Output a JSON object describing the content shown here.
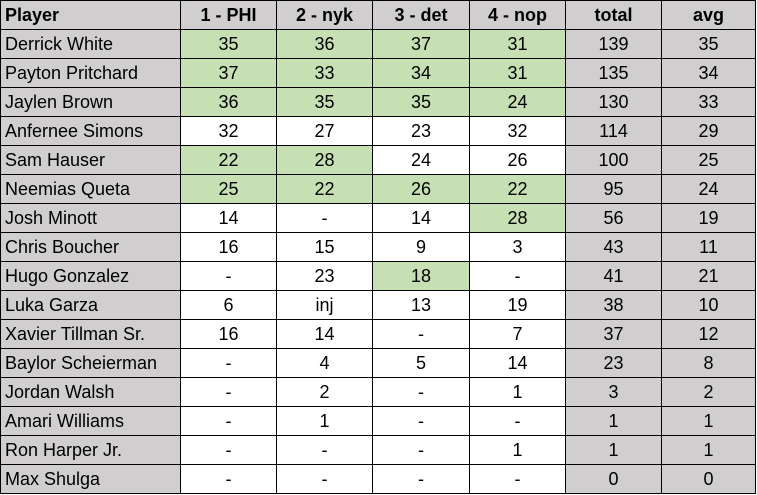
{
  "headers": [
    "Player",
    "1 - PHI",
    "2 - nyk",
    "3 - det",
    "4 - nop",
    "total",
    "avg"
  ],
  "colors": {
    "header_bg": "#d0cece",
    "highlight": "#c6e0b4",
    "cell_bg": "#ffffff"
  },
  "rows": [
    {
      "player": "Derrick White",
      "g1": "35",
      "g2": "36",
      "g3": "37",
      "g4": "31",
      "total": "139",
      "avg": "35",
      "hl": [
        true,
        true,
        true,
        true
      ]
    },
    {
      "player": "Payton Pritchard",
      "g1": "37",
      "g2": "33",
      "g3": "34",
      "g4": "31",
      "total": "135",
      "avg": "34",
      "hl": [
        true,
        true,
        true,
        true
      ]
    },
    {
      "player": "Jaylen Brown",
      "g1": "36",
      "g2": "35",
      "g3": "35",
      "g4": "24",
      "total": "130",
      "avg": "33",
      "hl": [
        true,
        true,
        true,
        true
      ]
    },
    {
      "player": "Anfernee Simons",
      "g1": "32",
      "g2": "27",
      "g3": "23",
      "g4": "32",
      "total": "114",
      "avg": "29",
      "hl": [
        false,
        false,
        false,
        false
      ]
    },
    {
      "player": "Sam Hauser",
      "g1": "22",
      "g2": "28",
      "g3": "24",
      "g4": "26",
      "total": "100",
      "avg": "25",
      "hl": [
        true,
        true,
        false,
        false
      ]
    },
    {
      "player": "Neemias Queta",
      "g1": "25",
      "g2": "22",
      "g3": "26",
      "g4": "22",
      "total": "95",
      "avg": "24",
      "hl": [
        true,
        true,
        true,
        true
      ]
    },
    {
      "player": "Josh Minott",
      "g1": "14",
      "g2": "-",
      "g3": "14",
      "g4": "28",
      "total": "56",
      "avg": "19",
      "hl": [
        false,
        false,
        false,
        true
      ]
    },
    {
      "player": "Chris Boucher",
      "g1": "16",
      "g2": "15",
      "g3": "9",
      "g4": "3",
      "total": "43",
      "avg": "11",
      "hl": [
        false,
        false,
        false,
        false
      ]
    },
    {
      "player": "Hugo Gonzalez",
      "g1": "-",
      "g2": "23",
      "g3": "18",
      "g4": "-",
      "total": "41",
      "avg": "21",
      "hl": [
        false,
        false,
        true,
        false
      ]
    },
    {
      "player": "Luka Garza",
      "g1": "6",
      "g2": "inj",
      "g3": "13",
      "g4": "19",
      "total": "38",
      "avg": "10",
      "hl": [
        false,
        false,
        false,
        false
      ]
    },
    {
      "player": "Xavier Tillman Sr.",
      "g1": "16",
      "g2": "14",
      "g3": "-",
      "g4": "7",
      "total": "37",
      "avg": "12",
      "hl": [
        false,
        false,
        false,
        false
      ]
    },
    {
      "player": "Baylor Scheierman",
      "g1": "-",
      "g2": "4",
      "g3": "5",
      "g4": "14",
      "total": "23",
      "avg": "8",
      "hl": [
        false,
        false,
        false,
        false
      ]
    },
    {
      "player": "Jordan Walsh",
      "g1": "-",
      "g2": "2",
      "g3": "-",
      "g4": "1",
      "total": "3",
      "avg": "2",
      "hl": [
        false,
        false,
        false,
        false
      ]
    },
    {
      "player": "Amari Williams",
      "g1": "-",
      "g2": "1",
      "g3": "-",
      "g4": "-",
      "total": "1",
      "avg": "1",
      "hl": [
        false,
        false,
        false,
        false
      ]
    },
    {
      "player": "Ron Harper Jr.",
      "g1": "-",
      "g2": "-",
      "g3": "-",
      "g4": "1",
      "total": "1",
      "avg": "1",
      "hl": [
        false,
        false,
        false,
        false
      ]
    },
    {
      "player": "Max Shulga",
      "g1": "-",
      "g2": "-",
      "g3": "-",
      "g4": "-",
      "total": "0",
      "avg": "0",
      "hl": [
        false,
        false,
        false,
        false
      ]
    }
  ]
}
